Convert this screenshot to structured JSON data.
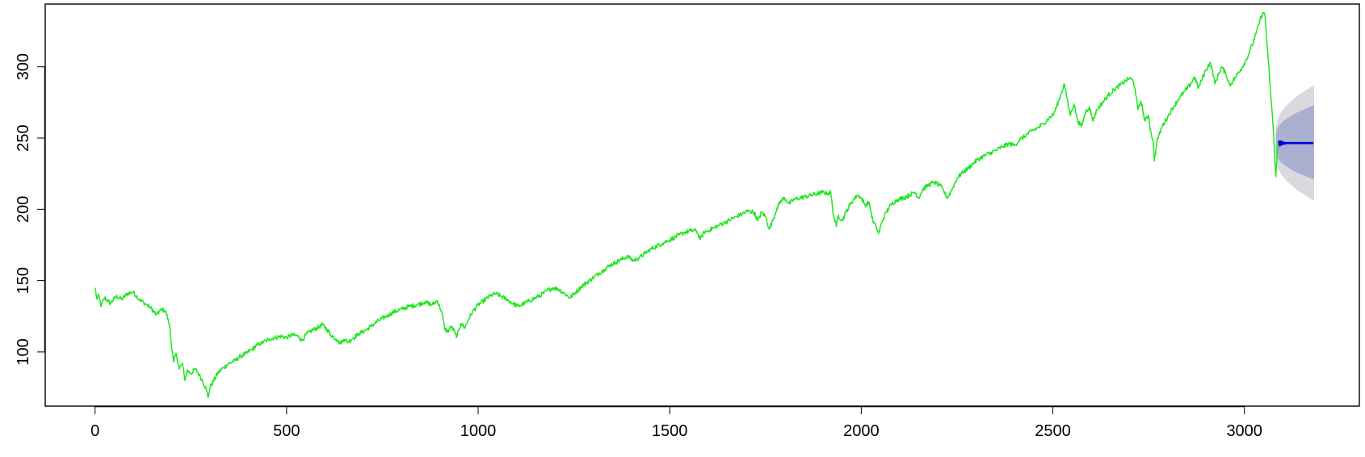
{
  "colors": {
    "series": "#1ee61e",
    "forecast": "#0000dd",
    "band80": "#aab0cf",
    "band95": "#d9d9df",
    "axis": "#000000"
  },
  "chart_data": {
    "type": "line",
    "title": "",
    "xlabel": "",
    "ylabel": "",
    "xlim": [
      -130,
      3300
    ],
    "ylim": [
      62,
      344
    ],
    "x_ticks": [
      0,
      500,
      1000,
      1500,
      2000,
      2500,
      3000
    ],
    "y_ticks": [
      100,
      150,
      200,
      250,
      300
    ],
    "x_tick_labels": [
      "0",
      "500",
      "1000",
      "1500",
      "2000",
      "2500",
      "3000"
    ],
    "y_tick_labels": [
      "100",
      "150",
      "200",
      "250",
      "300"
    ],
    "grid": false,
    "legend": "none",
    "series": [
      {
        "role": "observed",
        "points": [
          [
            0,
            145
          ],
          [
            5,
            137
          ],
          [
            10,
            140
          ],
          [
            15,
            132
          ],
          [
            25,
            138
          ],
          [
            40,
            134
          ],
          [
            55,
            139
          ],
          [
            70,
            137
          ],
          [
            85,
            141
          ],
          [
            100,
            142
          ],
          [
            115,
            137
          ],
          [
            130,
            134
          ],
          [
            145,
            131
          ],
          [
            160,
            126
          ],
          [
            175,
            130
          ],
          [
            185,
            128
          ],
          [
            195,
            118
          ],
          [
            200,
            103
          ],
          [
            205,
            93
          ],
          [
            212,
            99
          ],
          [
            220,
            88
          ],
          [
            228,
            92
          ],
          [
            235,
            80
          ],
          [
            240,
            87
          ],
          [
            250,
            85
          ],
          [
            262,
            88
          ],
          [
            272,
            84
          ],
          [
            280,
            80
          ],
          [
            290,
            74
          ],
          [
            295,
            68
          ],
          [
            300,
            75
          ],
          [
            310,
            80
          ],
          [
            320,
            85
          ],
          [
            335,
            89
          ],
          [
            350,
            92
          ],
          [
            365,
            94
          ],
          [
            380,
            97
          ],
          [
            395,
            99
          ],
          [
            410,
            102
          ],
          [
            425,
            105
          ],
          [
            440,
            107
          ],
          [
            455,
            109
          ],
          [
            470,
            110
          ],
          [
            485,
            111
          ],
          [
            500,
            110
          ],
          [
            515,
            112
          ],
          [
            530,
            111
          ],
          [
            540,
            108
          ],
          [
            550,
            112
          ],
          [
            565,
            115
          ],
          [
            580,
            117
          ],
          [
            595,
            119
          ],
          [
            605,
            116
          ],
          [
            615,
            112
          ],
          [
            630,
            109
          ],
          [
            640,
            106
          ],
          [
            650,
            109
          ],
          [
            660,
            107
          ],
          [
            675,
            110
          ],
          [
            690,
            113
          ],
          [
            705,
            115
          ],
          [
            720,
            118
          ],
          [
            740,
            122
          ],
          [
            760,
            125
          ],
          [
            780,
            128
          ],
          [
            800,
            130
          ],
          [
            820,
            132
          ],
          [
            840,
            133
          ],
          [
            860,
            135
          ],
          [
            880,
            133
          ],
          [
            893,
            136
          ],
          [
            905,
            128
          ],
          [
            912,
            117
          ],
          [
            920,
            114
          ],
          [
            930,
            118
          ],
          [
            940,
            113
          ],
          [
            945,
            111
          ],
          [
            955,
            120
          ],
          [
            965,
            117
          ],
          [
            975,
            123
          ],
          [
            985,
            128
          ],
          [
            1000,
            133
          ],
          [
            1015,
            136
          ],
          [
            1030,
            139
          ],
          [
            1045,
            141
          ],
          [
            1060,
            139
          ],
          [
            1075,
            137
          ],
          [
            1090,
            134
          ],
          [
            1105,
            132
          ],
          [
            1120,
            134
          ],
          [
            1135,
            136
          ],
          [
            1150,
            138
          ],
          [
            1165,
            140
          ],
          [
            1180,
            143
          ],
          [
            1195,
            145
          ],
          [
            1210,
            144
          ],
          [
            1225,
            141
          ],
          [
            1240,
            138
          ],
          [
            1255,
            142
          ],
          [
            1270,
            146
          ],
          [
            1285,
            149
          ],
          [
            1300,
            152
          ],
          [
            1315,
            155
          ],
          [
            1330,
            158
          ],
          [
            1345,
            161
          ],
          [
            1360,
            163
          ],
          [
            1375,
            165
          ],
          [
            1390,
            167
          ],
          [
            1405,
            164
          ],
          [
            1420,
            166
          ],
          [
            1435,
            169
          ],
          [
            1450,
            172
          ],
          [
            1465,
            174
          ],
          [
            1480,
            176
          ],
          [
            1495,
            178
          ],
          [
            1510,
            180
          ],
          [
            1525,
            182
          ],
          [
            1540,
            184
          ],
          [
            1555,
            185
          ],
          [
            1570,
            185
          ],
          [
            1580,
            179
          ],
          [
            1590,
            184
          ],
          [
            1600,
            185
          ],
          [
            1615,
            187
          ],
          [
            1630,
            189
          ],
          [
            1645,
            191
          ],
          [
            1660,
            193
          ],
          [
            1675,
            195
          ],
          [
            1690,
            197
          ],
          [
            1705,
            199
          ],
          [
            1720,
            198
          ],
          [
            1730,
            192
          ],
          [
            1740,
            198
          ],
          [
            1750,
            195
          ],
          [
            1760,
            186
          ],
          [
            1770,
            193
          ],
          [
            1780,
            201
          ],
          [
            1790,
            206
          ],
          [
            1800,
            208
          ],
          [
            1812,
            204
          ],
          [
            1825,
            207
          ],
          [
            1840,
            208
          ],
          [
            1855,
            209
          ],
          [
            1870,
            210
          ],
          [
            1885,
            211
          ],
          [
            1900,
            212
          ],
          [
            1910,
            211
          ],
          [
            1920,
            212
          ],
          [
            1928,
            195
          ],
          [
            1935,
            188
          ],
          [
            1940,
            196
          ],
          [
            1950,
            192
          ],
          [
            1960,
            198
          ],
          [
            1970,
            203
          ],
          [
            1980,
            207
          ],
          [
            1990,
            210
          ],
          [
            2000,
            208
          ],
          [
            2010,
            203
          ],
          [
            2020,
            205
          ],
          [
            2030,
            192
          ],
          [
            2040,
            187
          ],
          [
            2045,
            183
          ],
          [
            2055,
            192
          ],
          [
            2065,
            198
          ],
          [
            2080,
            204
          ],
          [
            2095,
            207
          ],
          [
            2110,
            208
          ],
          [
            2125,
            210
          ],
          [
            2140,
            212
          ],
          [
            2150,
            208
          ],
          [
            2160,
            214
          ],
          [
            2175,
            217
          ],
          [
            2190,
            219
          ],
          [
            2205,
            217
          ],
          [
            2215,
            213
          ],
          [
            2225,
            208
          ],
          [
            2235,
            213
          ],
          [
            2250,
            222
          ],
          [
            2265,
            226
          ],
          [
            2280,
            229
          ],
          [
            2295,
            233
          ],
          [
            2310,
            236
          ],
          [
            2325,
            238
          ],
          [
            2340,
            240
          ],
          [
            2355,
            242
          ],
          [
            2370,
            244
          ],
          [
            2385,
            246
          ],
          [
            2400,
            245
          ],
          [
            2415,
            249
          ],
          [
            2430,
            252
          ],
          [
            2445,
            255
          ],
          [
            2460,
            257
          ],
          [
            2475,
            260
          ],
          [
            2490,
            264
          ],
          [
            2500,
            266
          ],
          [
            2510,
            272
          ],
          [
            2520,
            280
          ],
          [
            2530,
            288
          ],
          [
            2537,
            278
          ],
          [
            2545,
            266
          ],
          [
            2555,
            274
          ],
          [
            2565,
            262
          ],
          [
            2575,
            258
          ],
          [
            2585,
            268
          ],
          [
            2595,
            272
          ],
          [
            2605,
            262
          ],
          [
            2615,
            270
          ],
          [
            2630,
            275
          ],
          [
            2645,
            280
          ],
          [
            2660,
            284
          ],
          [
            2675,
            287
          ],
          [
            2690,
            290
          ],
          [
            2700,
            292
          ],
          [
            2710,
            290
          ],
          [
            2715,
            284
          ],
          [
            2722,
            270
          ],
          [
            2730,
            276
          ],
          [
            2740,
            262
          ],
          [
            2750,
            266
          ],
          [
            2755,
            255
          ],
          [
            2762,
            248
          ],
          [
            2765,
            234
          ],
          [
            2772,
            248
          ],
          [
            2785,
            258
          ],
          [
            2800,
            265
          ],
          [
            2815,
            272
          ],
          [
            2830,
            278
          ],
          [
            2845,
            283
          ],
          [
            2860,
            288
          ],
          [
            2870,
            293
          ],
          [
            2880,
            285
          ],
          [
            2890,
            292
          ],
          [
            2900,
            298
          ],
          [
            2910,
            303
          ],
          [
            2917,
            297
          ],
          [
            2923,
            288
          ],
          [
            2930,
            293
          ],
          [
            2940,
            300
          ],
          [
            2950,
            296
          ],
          [
            2962,
            287
          ],
          [
            2975,
            292
          ],
          [
            2990,
            298
          ],
          [
            3005,
            305
          ],
          [
            3020,
            315
          ],
          [
            3030,
            323
          ],
          [
            3040,
            332
          ],
          [
            3048,
            338
          ],
          [
            3054,
            336
          ],
          [
            3058,
            320
          ],
          [
            3062,
            306
          ],
          [
            3066,
            290
          ],
          [
            3070,
            276
          ],
          [
            3074,
            262
          ],
          [
            3077,
            248
          ],
          [
            3080,
            232
          ],
          [
            3082,
            223
          ],
          [
            3085,
            238
          ],
          [
            3088,
            247
          ]
        ]
      },
      {
        "role": "forecast",
        "x": [
          3090,
          3180
        ],
        "value": 246.5,
        "oscillation": [
          248.2,
          244.8,
          247.6,
          245.5,
          247.1,
          245.9,
          246.8,
          246.2
        ]
      }
    ],
    "bands": [
      {
        "level": "80%",
        "x_start": 3082,
        "x_end": 3182,
        "lower_start": 240,
        "upper_start": 253,
        "lower_end": 221,
        "upper_end": 273
      },
      {
        "level": "95%",
        "x_start": 3082,
        "x_end": 3182,
        "lower_start": 236,
        "upper_start": 257,
        "lower_end": 206,
        "upper_end": 287
      }
    ]
  }
}
